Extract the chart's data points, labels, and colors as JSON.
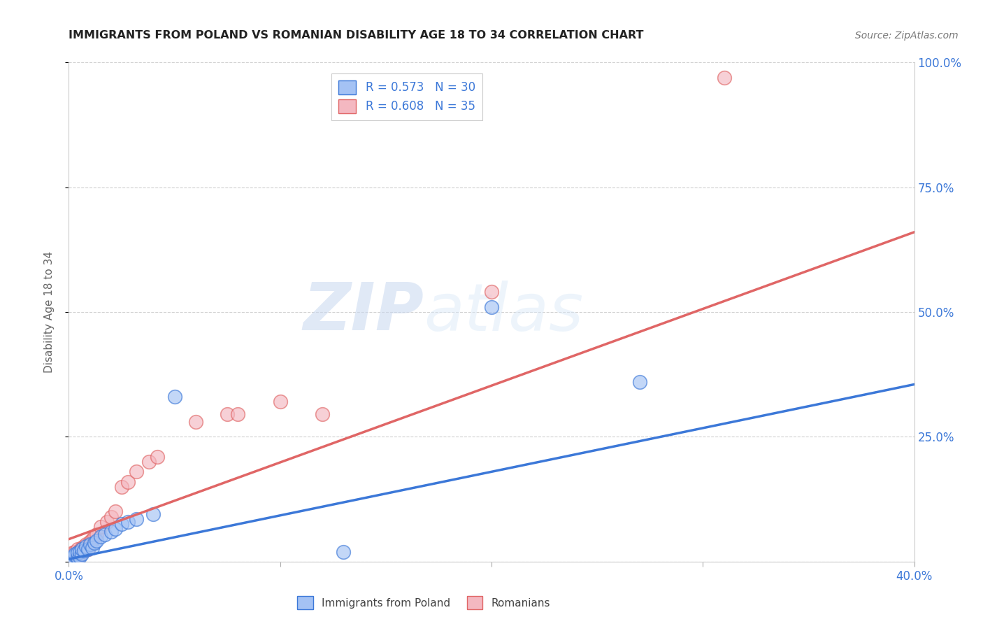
{
  "title": "IMMIGRANTS FROM POLAND VS ROMANIAN DISABILITY AGE 18 TO 34 CORRELATION CHART",
  "source": "Source: ZipAtlas.com",
  "ylabel": "Disability Age 18 to 34",
  "legend_label_1": "R = 0.573   N = 30",
  "legend_label_2": "R = 0.608   N = 35",
  "legend_bottom_1": "Immigrants from Poland",
  "legend_bottom_2": "Romanians",
  "xlim": [
    0.0,
    0.4
  ],
  "ylim": [
    0.0,
    1.0
  ],
  "color_poland": "#a4c2f4",
  "color_romanian": "#f4b8c1",
  "color_poland_line": "#3c78d8",
  "color_romanian_line": "#e06666",
  "watermark_zip": "ZIP",
  "watermark_atlas": "atlas",
  "poland_x": [
    0.001,
    0.002,
    0.002,
    0.003,
    0.003,
    0.004,
    0.004,
    0.005,
    0.005,
    0.006,
    0.006,
    0.007,
    0.008,
    0.009,
    0.01,
    0.011,
    0.012,
    0.013,
    0.015,
    0.017,
    0.02,
    0.022,
    0.025,
    0.028,
    0.032,
    0.04,
    0.05,
    0.13,
    0.2,
    0.27
  ],
  "poland_y": [
    0.005,
    0.008,
    0.01,
    0.012,
    0.015,
    0.008,
    0.018,
    0.01,
    0.02,
    0.015,
    0.025,
    0.022,
    0.03,
    0.025,
    0.035,
    0.028,
    0.038,
    0.042,
    0.05,
    0.055,
    0.06,
    0.065,
    0.075,
    0.08,
    0.085,
    0.095,
    0.33,
    0.02,
    0.51,
    0.36
  ],
  "romanian_x": [
    0.001,
    0.001,
    0.002,
    0.002,
    0.003,
    0.003,
    0.004,
    0.004,
    0.005,
    0.005,
    0.006,
    0.006,
    0.007,
    0.008,
    0.009,
    0.01,
    0.011,
    0.012,
    0.013,
    0.015,
    0.018,
    0.02,
    0.022,
    0.025,
    0.028,
    0.032,
    0.038,
    0.042,
    0.06,
    0.075,
    0.08,
    0.1,
    0.12,
    0.2,
    0.31
  ],
  "romanian_y": [
    0.005,
    0.012,
    0.008,
    0.018,
    0.01,
    0.02,
    0.015,
    0.025,
    0.012,
    0.022,
    0.018,
    0.028,
    0.03,
    0.035,
    0.025,
    0.04,
    0.045,
    0.05,
    0.055,
    0.07,
    0.08,
    0.09,
    0.1,
    0.15,
    0.16,
    0.18,
    0.2,
    0.21,
    0.28,
    0.295,
    0.295,
    0.32,
    0.295,
    0.54,
    0.97
  ],
  "poland_line_x": [
    0.0,
    0.4
  ],
  "poland_line_y": [
    0.005,
    0.355
  ],
  "romanian_line_x": [
    0.0,
    0.4
  ],
  "romanian_line_y": [
    0.045,
    0.66
  ]
}
